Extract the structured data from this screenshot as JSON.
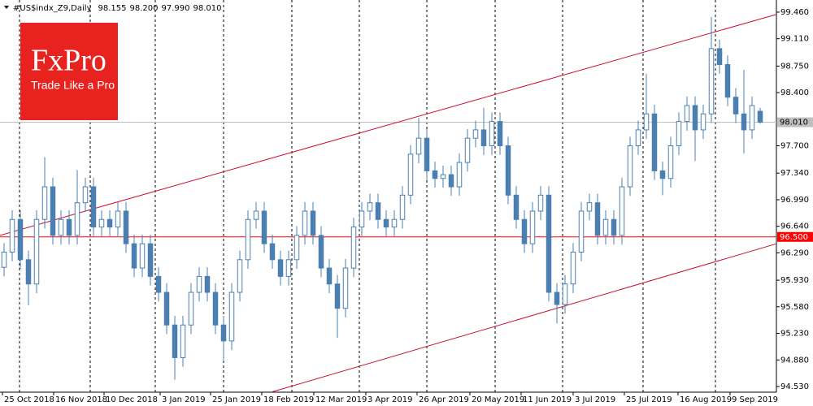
{
  "chart_data": {
    "type": "candlestick",
    "header": {
      "symbol": "#US$indx_Z9,Daily",
      "ohlc": [
        "98.155",
        "98.200",
        "97.990",
        "98.010"
      ]
    },
    "logo": {
      "brand": "FxPro",
      "tagline": "Trade Like a Pro"
    },
    "color": "#4a7fb0",
    "open": [
      96.1,
      96.3,
      96.73,
      96.2,
      95.88,
      96.73,
      97.16,
      96.52,
      96.73,
      96.52,
      96.95,
      97.16,
      96.63,
      96.73,
      96.63,
      96.84,
      96.41,
      96.09,
      96.41,
      95.98,
      95.77,
      95.34,
      94.91,
      95.34,
      95.77,
      95.98,
      95.77,
      95.34,
      95.13,
      95.77,
      96.2,
      96.73,
      96.84,
      96.41,
      96.2,
      95.98,
      96.2,
      96.52,
      96.84,
      96.52,
      96.09,
      95.88,
      95.56,
      96.09,
      96.63,
      96.84,
      96.95,
      96.73,
      96.63,
      96.73,
      97.05,
      97.59,
      97.8,
      97.37,
      97.27,
      97.32,
      97.16,
      97.48,
      97.8,
      97.91,
      97.7,
      98.02,
      97.7,
      97.05,
      96.73,
      96.41,
      96.84,
      97.05,
      95.77,
      95.61,
      95.88,
      96.3,
      96.84,
      96.95,
      96.52,
      96.73,
      96.52,
      97.16,
      97.7,
      97.91,
      98.12,
      97.37,
      97.27,
      97.7,
      98.02,
      98.23,
      97.91,
      98.12,
      98.98,
      98.77,
      98.34,
      98.12,
      97.91,
      98.155
    ],
    "high": [
      96.42,
      96.85,
      96.85,
      96.32,
      96.85,
      97.55,
      97.28,
      96.85,
      96.85,
      97.38,
      97.28,
      97.28,
      96.85,
      96.85,
      96.96,
      96.96,
      96.53,
      96.53,
      96.53,
      96.1,
      95.89,
      95.46,
      95.46,
      95.89,
      96.1,
      96.1,
      95.89,
      95.46,
      95.89,
      96.32,
      96.85,
      96.96,
      96.96,
      96.53,
      96.32,
      96.32,
      96.64,
      96.96,
      96.96,
      96.64,
      96.21,
      96.0,
      96.21,
      96.75,
      96.96,
      97.07,
      97.07,
      96.85,
      96.85,
      97.17,
      97.71,
      98.07,
      97.92,
      97.49,
      97.44,
      97.44,
      97.6,
      97.92,
      98.03,
      98.2,
      98.14,
      98.14,
      97.82,
      97.17,
      96.85,
      96.96,
      97.17,
      97.17,
      95.89,
      96.0,
      96.42,
      96.96,
      97.07,
      97.07,
      96.85,
      96.85,
      97.28,
      97.82,
      98.03,
      98.65,
      98.24,
      97.49,
      97.82,
      98.14,
      98.35,
      98.35,
      98.24,
      99.4,
      99.1,
      98.89,
      98.46,
      98.7,
      98.35,
      98.2
    ],
    "low": [
      95.98,
      96.18,
      96.08,
      95.6,
      95.76,
      96.61,
      96.4,
      96.4,
      96.4,
      96.4,
      96.83,
      96.51,
      96.51,
      96.51,
      96.51,
      96.29,
      95.97,
      95.97,
      95.86,
      95.65,
      95.22,
      94.62,
      94.79,
      95.22,
      95.65,
      95.65,
      95.22,
      94.88,
      95.01,
      95.65,
      96.08,
      96.61,
      96.29,
      96.08,
      95.86,
      95.86,
      96.08,
      96.4,
      96.4,
      95.97,
      95.76,
      95.17,
      95.44,
      95.97,
      96.51,
      96.72,
      96.61,
      96.51,
      96.51,
      96.61,
      96.93,
      97.47,
      97.25,
      97.15,
      97.15,
      97.04,
      97.04,
      97.36,
      97.68,
      97.58,
      97.58,
      97.58,
      96.93,
      96.61,
      96.29,
      96.29,
      96.72,
      95.65,
      95.36,
      95.49,
      95.76,
      96.18,
      96.72,
      96.4,
      96.4,
      96.4,
      96.4,
      97.04,
      97.58,
      97.79,
      97.25,
      97.05,
      97.15,
      97.58,
      97.9,
      97.5,
      97.79,
      98.0,
      98.65,
      98.22,
      98.0,
      97.6,
      97.79,
      97.99
    ],
    "close": [
      96.3,
      96.73,
      96.2,
      95.88,
      96.73,
      97.16,
      96.52,
      96.73,
      96.52,
      96.95,
      97.16,
      96.63,
      96.73,
      96.63,
      96.84,
      96.41,
      96.09,
      96.41,
      95.98,
      95.77,
      95.34,
      94.91,
      95.34,
      95.77,
      95.98,
      95.77,
      95.34,
      95.13,
      95.77,
      96.2,
      96.73,
      96.84,
      96.41,
      96.2,
      95.98,
      96.2,
      96.52,
      96.84,
      96.52,
      96.09,
      95.88,
      95.56,
      96.09,
      96.63,
      96.84,
      96.95,
      96.73,
      96.63,
      96.73,
      97.05,
      97.59,
      97.8,
      97.37,
      97.27,
      97.32,
      97.16,
      97.48,
      97.8,
      97.91,
      97.7,
      98.02,
      97.7,
      97.05,
      96.73,
      96.41,
      96.84,
      97.05,
      95.77,
      95.61,
      95.88,
      96.3,
      96.84,
      96.95,
      96.52,
      96.73,
      96.52,
      97.16,
      97.7,
      97.91,
      98.12,
      97.37,
      97.27,
      97.7,
      98.02,
      98.23,
      97.91,
      98.12,
      98.98,
      98.77,
      98.34,
      98.12,
      97.91,
      98.23,
      98.01
    ],
    "xlim": [
      0,
      95.5
    ],
    "xticks": [
      {
        "value": 0.3,
        "label": "25 Oct 2018"
      },
      {
        "value": 6.6,
        "label": "16 Nov 2018"
      },
      {
        "value": 12.8,
        "label": "10 Dec 2018"
      },
      {
        "value": 19.7,
        "label": "3 Jan 2019"
      },
      {
        "value": 25.9,
        "label": "25 Jan 2019"
      },
      {
        "value": 32.2,
        "label": "18 Feb 2019"
      },
      {
        "value": 38.6,
        "label": "12 Mar 2019"
      },
      {
        "value": 45,
        "label": "3 Apr 2019"
      },
      {
        "value": 51.3,
        "label": "26 Apr 2019"
      },
      {
        "value": 57.8,
        "label": "20 May 2019"
      },
      {
        "value": 64.1,
        "label": "11 Jun 2019"
      },
      {
        "value": 70.5,
        "label": "3 Jul 2019"
      },
      {
        "value": 76.8,
        "label": "25 Jul 2019"
      },
      {
        "value": 83.4,
        "label": "16 Aug 2019"
      },
      {
        "value": 89.8,
        "label": "9 Sep 2019"
      }
    ],
    "ylim": [
      94.455,
      99.62
    ],
    "yticks": [
      {
        "value": 99.46,
        "label": "99.460"
      },
      {
        "value": 99.11,
        "label": "99.110"
      },
      {
        "value": 98.75,
        "label": "98.750"
      },
      {
        "value": 98.4,
        "label": "98.400"
      },
      {
        "value": 97.7,
        "label": "97.700"
      },
      {
        "value": 97.34,
        "label": "97.340"
      },
      {
        "value": 96.99,
        "label": "96.990"
      },
      {
        "value": 96.64,
        "label": "96.640"
      },
      {
        "value": 96.29,
        "label": "96.290"
      },
      {
        "value": 95.93,
        "label": "95.930"
      },
      {
        "value": 95.58,
        "label": "95.580"
      },
      {
        "value": 95.23,
        "label": "95.230"
      },
      {
        "value": 94.88,
        "label": "94.880"
      },
      {
        "value": 94.53,
        "label": "94.530"
      }
    ],
    "levels": [
      {
        "value": 98.01,
        "label": "98.010",
        "color": "#c0c0c0",
        "text_color": "#000000"
      },
      {
        "value": 96.5,
        "label": "96.500",
        "color": "#ff0000",
        "text_color": "#ffffff"
      }
    ],
    "trend_lines": [
      {
        "x": [
          0,
          95.5
        ],
        "y": [
          96.52,
          99.43
        ],
        "color": "#c8102e"
      },
      {
        "x": [
          33.5,
          95.5
        ],
        "y": [
          94.46,
          96.41
        ],
        "color": "#c8102e"
      }
    ]
  }
}
